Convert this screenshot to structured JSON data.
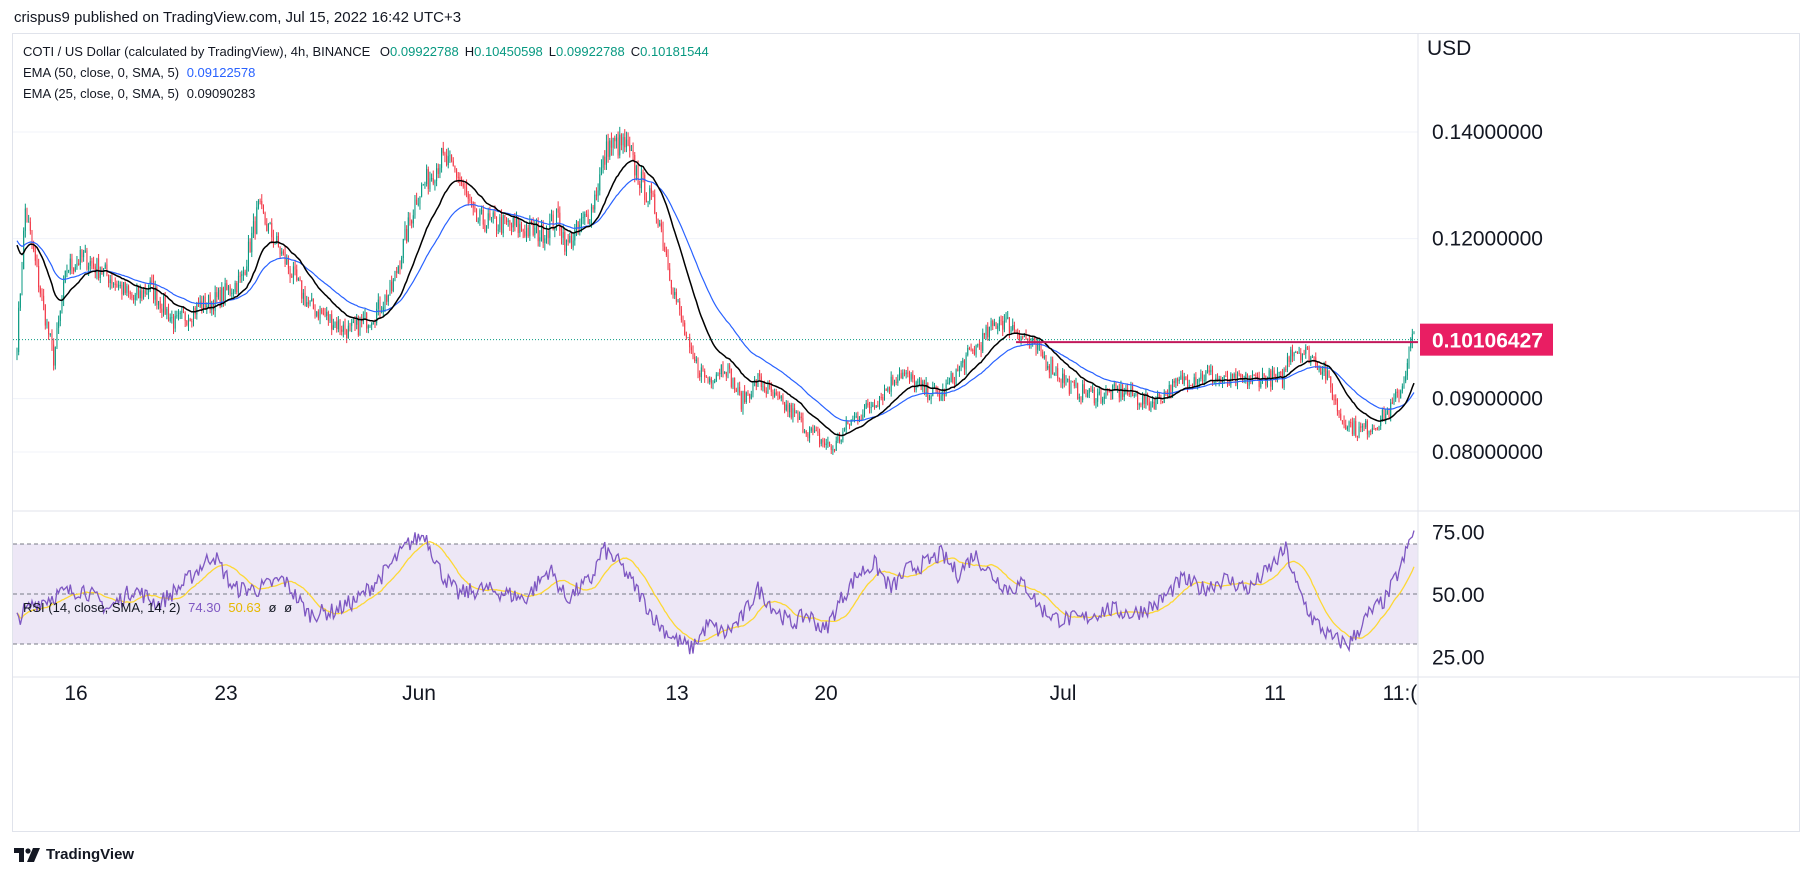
{
  "header": {
    "publisher_text": "crispus9 published on TradingView.com, Jul 15, 2022 16:42 UTC+3"
  },
  "legend": {
    "symbol": "COTI / US Dollar (calculated by TradingView), 4h, BINANCE",
    "ohlc": [
      {
        "key": "O",
        "value": "0.09922788"
      },
      {
        "key": "H",
        "value": "0.10450598"
      },
      {
        "key": "L",
        "value": "0.09922788"
      },
      {
        "key": "C",
        "value": "0.10181544"
      }
    ],
    "ema50_label": "EMA (50, close, 0, SMA, 5)",
    "ema50_value": "0.09122578",
    "ema25_label": "EMA (25, close, 0, SMA, 5)",
    "ema25_value": "0.09090283",
    "rsi_label": "RSI (14, close, SMA, 14, 2)",
    "rsi_value": "74.30",
    "rsi_sma_value": "50.63",
    "rsi_extra": [
      "ø",
      "ø"
    ]
  },
  "currency_label": "USD",
  "footer": {
    "brand": "TradingView"
  },
  "colors": {
    "up": "#089981",
    "down": "#f23645",
    "ema50": "#2962ff",
    "ema25": "#000000",
    "rsi_line": "#7e57c2",
    "rsi_sma": "#fdd835",
    "rsi_band": "#ede7f6",
    "price_label_bg": "#e91e63",
    "resistance_line": "#c2185b",
    "grid": "#f0f3fa"
  },
  "chart_data": {
    "type": "candlestick",
    "title": "COTI / US Dollar (calculated by TradingView), 4h, BINANCE",
    "ylabel": "USD",
    "price_ticks": [
      "0.14000000",
      "0.12000000",
      "0.09000000",
      "0.08000000"
    ],
    "price_tick_values": [
      0.14,
      0.12,
      0.09,
      0.08
    ],
    "current_price_label": "0.10106427",
    "current_price": 0.10106427,
    "resistance_level": 0.1006,
    "x_ticks": [
      "16",
      "23",
      "Jun",
      "13",
      "20",
      "Jul",
      "11",
      "11:("
    ],
    "rsi_ticks": [
      "75.00",
      "50.00",
      "25.00"
    ],
    "rsi_tick_values": [
      75,
      50,
      25
    ],
    "rsi_levels": {
      "upper": 70,
      "middle": 50,
      "lower": 30
    },
    "price_path_keypoints": [
      [
        0,
        0.1005
      ],
      [
        5,
        0.1255
      ],
      [
        15,
        0.1085
      ],
      [
        22,
        0.0975
      ],
      [
        30,
        0.1145
      ],
      [
        40,
        0.1165
      ],
      [
        55,
        0.113
      ],
      [
        70,
        0.1085
      ],
      [
        80,
        0.111
      ],
      [
        95,
        0.104
      ],
      [
        110,
        0.1075
      ],
      [
        120,
        0.1085
      ],
      [
        135,
        0.1125
      ],
      [
        145,
        0.1255
      ],
      [
        160,
        0.1165
      ],
      [
        175,
        0.1075
      ],
      [
        190,
        0.1045
      ],
      [
        200,
        0.1025
      ],
      [
        215,
        0.106
      ],
      [
        225,
        0.1105
      ],
      [
        240,
        0.128
      ],
      [
        255,
        0.135
      ],
      [
        265,
        0.132
      ],
      [
        275,
        0.1235
      ],
      [
        295,
        0.1225
      ],
      [
        315,
        0.121
      ],
      [
        325,
        0.124
      ],
      [
        330,
        0.1185
      ],
      [
        345,
        0.1255
      ],
      [
        355,
        0.1375
      ],
      [
        365,
        0.1375
      ],
      [
        375,
        0.1305
      ],
      [
        385,
        0.1245
      ],
      [
        395,
        0.1095
      ],
      [
        405,
        0.0975
      ],
      [
        415,
        0.0935
      ],
      [
        425,
        0.0965
      ],
      [
        435,
        0.0895
      ],
      [
        445,
        0.0935
      ],
      [
        455,
        0.09
      ],
      [
        465,
        0.0875
      ],
      [
        475,
        0.084
      ],
      [
        490,
        0.0805
      ],
      [
        500,
        0.0855
      ],
      [
        510,
        0.088
      ],
      [
        520,
        0.091
      ],
      [
        530,
        0.095
      ],
      [
        545,
        0.0915
      ],
      [
        555,
        0.0905
      ],
      [
        570,
        0.0975
      ],
      [
        580,
        0.101
      ],
      [
        590,
        0.105
      ],
      [
        600,
        0.103
      ],
      [
        610,
        0.1
      ],
      [
        620,
        0.0965
      ],
      [
        635,
        0.0915
      ],
      [
        650,
        0.0905
      ],
      [
        665,
        0.0915
      ],
      [
        680,
        0.089
      ],
      [
        690,
        0.091
      ],
      [
        700,
        0.0935
      ],
      [
        715,
        0.0945
      ],
      [
        725,
        0.093
      ],
      [
        740,
        0.0935
      ],
      [
        750,
        0.094
      ],
      [
        760,
        0.0935
      ],
      [
        765,
        0.0995
      ],
      [
        775,
        0.0985
      ],
      [
        785,
        0.0955
      ],
      [
        795,
        0.0865
      ],
      [
        805,
        0.084
      ],
      [
        815,
        0.085
      ],
      [
        825,
        0.088
      ],
      [
        832,
        0.0925
      ],
      [
        838,
        0.1015
      ]
    ],
    "rsi_path_keypoints": [
      [
        0,
        40
      ],
      [
        10,
        46
      ],
      [
        25,
        50
      ],
      [
        40,
        52
      ],
      [
        55,
        44
      ],
      [
        70,
        52
      ],
      [
        85,
        46
      ],
      [
        100,
        54
      ],
      [
        118,
        66
      ],
      [
        130,
        52
      ],
      [
        145,
        52
      ],
      [
        160,
        56
      ],
      [
        175,
        42
      ],
      [
        190,
        43
      ],
      [
        205,
        48
      ],
      [
        220,
        58
      ],
      [
        235,
        70
      ],
      [
        245,
        74
      ],
      [
        255,
        58
      ],
      [
        265,
        50
      ],
      [
        280,
        52
      ],
      [
        295,
        50
      ],
      [
        305,
        48
      ],
      [
        320,
        60
      ],
      [
        330,
        48
      ],
      [
        345,
        56
      ],
      [
        352,
        68
      ],
      [
        362,
        62
      ],
      [
        372,
        52
      ],
      [
        385,
        38
      ],
      [
        395,
        32
      ],
      [
        405,
        28
      ],
      [
        415,
        38
      ],
      [
        425,
        34
      ],
      [
        435,
        40
      ],
      [
        445,
        52
      ],
      [
        455,
        44
      ],
      [
        465,
        38
      ],
      [
        475,
        42
      ],
      [
        485,
        35
      ],
      [
        495,
        48
      ],
      [
        505,
        58
      ],
      [
        515,
        62
      ],
      [
        525,
        52
      ],
      [
        535,
        60
      ],
      [
        545,
        62
      ],
      [
        555,
        66
      ],
      [
        565,
        58
      ],
      [
        575,
        66
      ],
      [
        585,
        58
      ],
      [
        595,
        52
      ],
      [
        605,
        54
      ],
      [
        615,
        44
      ],
      [
        625,
        40
      ],
      [
        640,
        40
      ],
      [
        655,
        44
      ],
      [
        670,
        42
      ],
      [
        685,
        46
      ],
      [
        700,
        56
      ],
      [
        712,
        52
      ],
      [
        725,
        56
      ],
      [
        740,
        52
      ],
      [
        752,
        60
      ],
      [
        762,
        68
      ],
      [
        768,
        54
      ],
      [
        778,
        40
      ],
      [
        790,
        32
      ],
      [
        800,
        30
      ],
      [
        812,
        42
      ],
      [
        822,
        48
      ],
      [
        832,
        62
      ],
      [
        838,
        74.3
      ]
    ]
  }
}
